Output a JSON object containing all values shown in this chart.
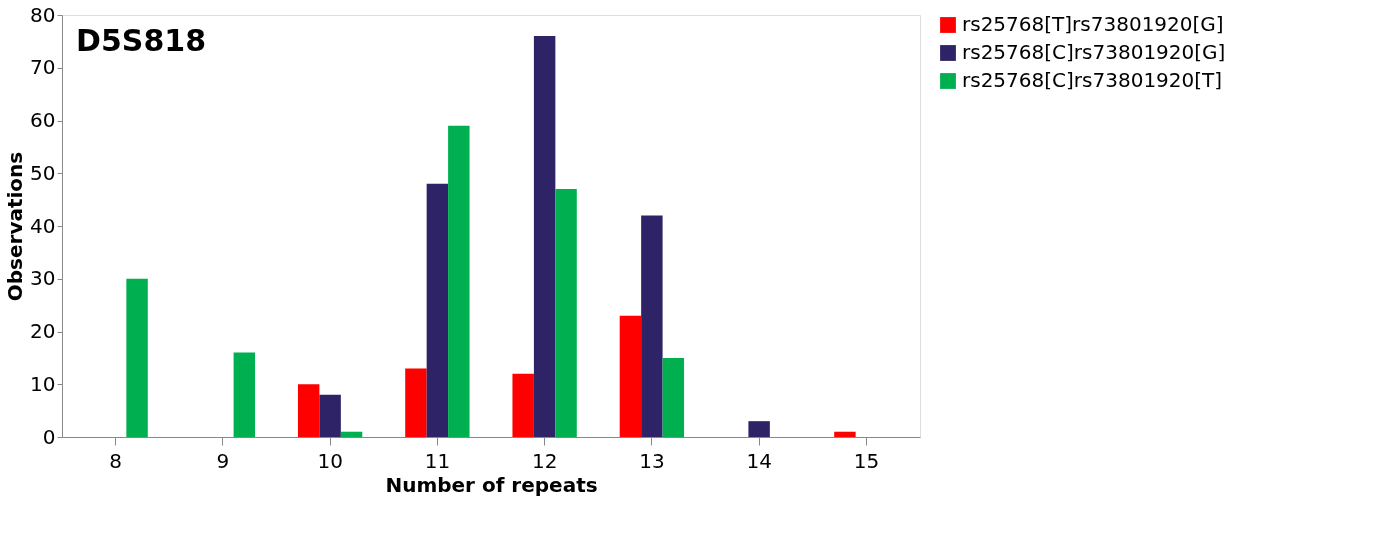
{
  "chart_data": {
    "type": "bar",
    "title": "D5S818",
    "xlabel": "Number of repeats",
    "ylabel": "Observations",
    "categories": [
      "8",
      "9",
      "10",
      "11",
      "12",
      "13",
      "14",
      "15"
    ],
    "series": [
      {
        "name": "rs25768[T]rs73801920[G]",
        "color": "#ff0000",
        "values": [
          0,
          0,
          10,
          13,
          12,
          23,
          0,
          1
        ]
      },
      {
        "name": "rs25768[C]rs73801920[G]",
        "color": "#2e2366",
        "values": [
          0,
          0,
          8,
          48,
          76,
          42,
          3,
          0
        ]
      },
      {
        "name": "rs25768[C]rs73801920[T]",
        "color": "#00b050",
        "values": [
          30,
          16,
          1,
          59,
          47,
          15,
          0,
          0
        ]
      }
    ],
    "ylim": [
      0,
      80
    ],
    "yticks": [
      0,
      10,
      20,
      30,
      40,
      50,
      60,
      70,
      80
    ],
    "grid": false,
    "legend": "right"
  }
}
